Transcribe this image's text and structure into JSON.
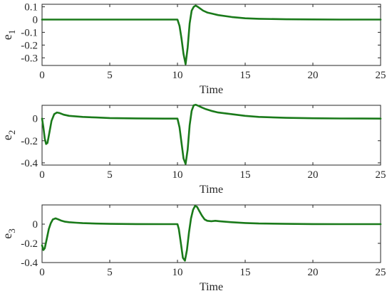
{
  "chart_data": [
    {
      "type": "line",
      "ylabel_base": "e",
      "ylabel_sub": "1",
      "xlabel": "Time",
      "xlim": [
        0,
        25
      ],
      "ylim": [
        -0.36,
        0.12
      ],
      "xticks": [
        0,
        5,
        10,
        15,
        20,
        25
      ],
      "xtick_labels": [
        "0",
        "5",
        "10",
        "15",
        "20",
        "25"
      ],
      "yticks": [
        0.1,
        0,
        -0.1,
        -0.2,
        -0.3
      ],
      "ytick_labels": [
        "0.1",
        "0",
        "-0.1",
        "-0.2",
        "-0.3"
      ],
      "grid": false,
      "series": [
        {
          "color": "#1a7a1a",
          "x": [
            0,
            2,
            5,
            8,
            10,
            10.15,
            10.3,
            10.45,
            10.6,
            10.75,
            10.9,
            11.05,
            11.2,
            11.35,
            11.5,
            11.7,
            11.9,
            12.2,
            12.6,
            13,
            14,
            15,
            16,
            18,
            20,
            22,
            25
          ],
          "y": [
            0,
            0,
            0,
            0,
            0,
            -0.05,
            -0.15,
            -0.27,
            -0.35,
            -0.22,
            -0.03,
            0.07,
            0.1,
            0.11,
            0.1,
            0.085,
            0.07,
            0.055,
            0.045,
            0.035,
            0.02,
            0.01,
            0.006,
            0.002,
            0.001,
            0,
            0
          ]
        }
      ]
    },
    {
      "type": "line",
      "ylabel_base": "e",
      "ylabel_sub": "2",
      "xlabel": "Time",
      "xlim": [
        0,
        25
      ],
      "ylim": [
        -0.42,
        0.12
      ],
      "xticks": [
        0,
        5,
        10,
        15,
        20,
        25
      ],
      "xtick_labels": [
        "0",
        "5",
        "10",
        "15",
        "20",
        "25"
      ],
      "yticks": [
        0,
        -0.2,
        -0.4
      ],
      "ytick_labels": [
        "0",
        "-0.2",
        "-0.4"
      ],
      "grid": false,
      "series": [
        {
          "color": "#1a7a1a",
          "x": [
            0,
            0.1,
            0.2,
            0.3,
            0.4,
            0.55,
            0.7,
            0.9,
            1.1,
            1.3,
            1.6,
            2,
            2.5,
            3,
            4,
            5,
            7,
            9,
            10,
            10.15,
            10.3,
            10.45,
            10.6,
            10.75,
            10.9,
            11.05,
            11.2,
            11.35,
            11.55,
            11.8,
            12.1,
            12.5,
            13,
            14,
            15,
            16,
            18,
            20,
            22,
            25
          ],
          "y": [
            0,
            -0.08,
            -0.18,
            -0.23,
            -0.22,
            -0.12,
            -0.02,
            0.04,
            0.055,
            0.05,
            0.035,
            0.025,
            0.02,
            0.015,
            0.01,
            0.005,
            0.002,
            0,
            0,
            -0.08,
            -0.22,
            -0.36,
            -0.41,
            -0.28,
            -0.06,
            0.07,
            0.12,
            0.125,
            0.115,
            0.1,
            0.085,
            0.07,
            0.055,
            0.04,
            0.025,
            0.015,
            0.007,
            0.003,
            0.001,
            0
          ]
        }
      ]
    },
    {
      "type": "line",
      "ylabel_base": "e",
      "ylabel_sub": "3",
      "xlabel": "Time",
      "xlim": [
        0,
        25
      ],
      "ylim": [
        -0.4,
        0.2
      ],
      "xticks": [
        0,
        5,
        10,
        15,
        20,
        25
      ],
      "xtick_labels": [
        "0",
        "5",
        "10",
        "15",
        "20",
        "25"
      ],
      "yticks": [
        0,
        -0.2,
        -0.4
      ],
      "ytick_labels": [
        "0",
        "-0.2",
        "-0.4"
      ],
      "grid": false,
      "series": [
        {
          "color": "#1a7a1a",
          "x": [
            0,
            0.1,
            0.2,
            0.35,
            0.5,
            0.65,
            0.8,
            1,
            1.2,
            1.45,
            1.7,
            2,
            2.5,
            3,
            4,
            5,
            7,
            9,
            10,
            10.1,
            10.25,
            10.4,
            10.55,
            10.7,
            10.85,
            11,
            11.15,
            11.3,
            11.45,
            11.6,
            11.8,
            12,
            12.2,
            12.5,
            12.8,
            13.1,
            13.5,
            14,
            15,
            16,
            18,
            20,
            22,
            25
          ],
          "y": [
            -0.22,
            -0.27,
            -0.25,
            -0.15,
            -0.05,
            0.01,
            0.05,
            0.06,
            0.05,
            0.035,
            0.025,
            0.02,
            0.015,
            0.01,
            0.006,
            0.003,
            0.001,
            0,
            0,
            -0.05,
            -0.2,
            -0.35,
            -0.38,
            -0.27,
            -0.09,
            0.06,
            0.15,
            0.19,
            0.18,
            0.14,
            0.09,
            0.05,
            0.035,
            0.03,
            0.035,
            0.03,
            0.025,
            0.02,
            0.012,
            0.007,
            0.003,
            0.001,
            0,
            0
          ]
        }
      ]
    }
  ]
}
